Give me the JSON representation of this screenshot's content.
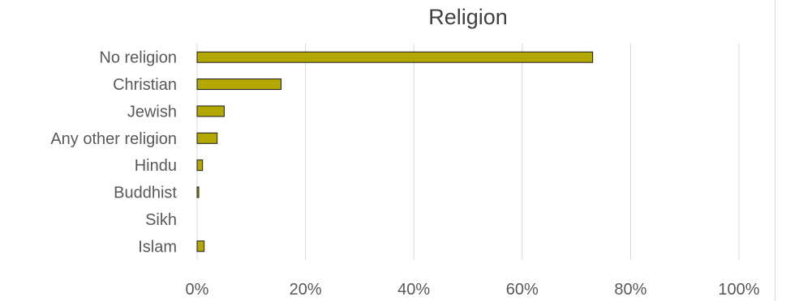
{
  "chart_data": {
    "type": "bar",
    "orientation": "horizontal",
    "title": "Religion",
    "categories": [
      "No religion",
      "Christian",
      "Jewish",
      "Any other religion",
      "Hindu",
      "Buddhist",
      "Sikh",
      "Islam"
    ],
    "values": [
      73,
      15.5,
      5,
      3.7,
      1,
      0.3,
      0,
      1.3
    ],
    "value_format": "percent",
    "xlim": [
      0,
      100
    ],
    "x_ticks": [
      "0%",
      "20%",
      "40%",
      "60%",
      "80%",
      "100%"
    ],
    "xlabel": "",
    "ylabel": "",
    "grid": "vertical",
    "legend": "none",
    "colors": {
      "bar_fill": "#b3a800",
      "bar_stroke": "#1a1a1a",
      "gridline": "#d9d9d9",
      "title": "#404040",
      "tick_text": "#595959"
    }
  }
}
